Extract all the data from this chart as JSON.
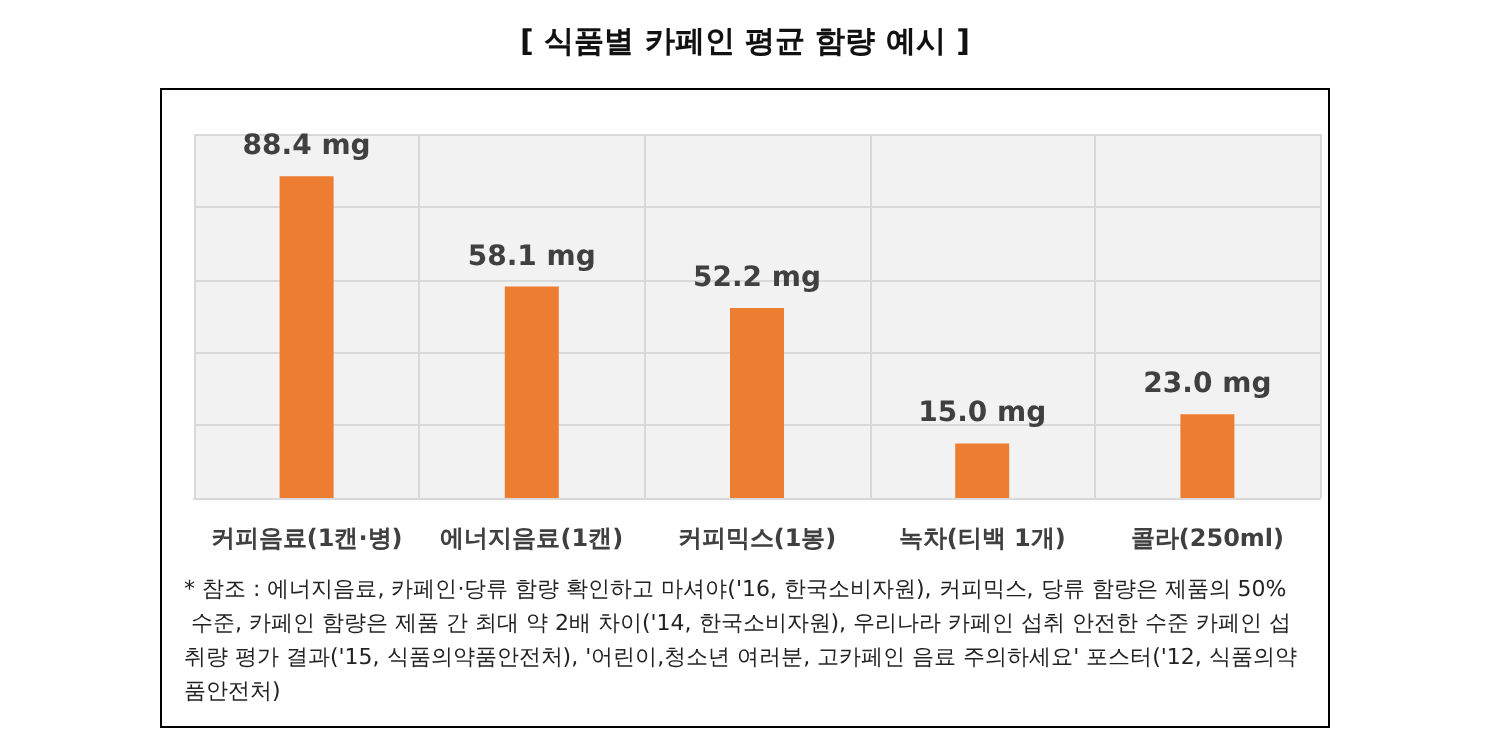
{
  "chart_data": {
    "type": "bar",
    "title": "[ 식품별 카페인 평균 함량 예시 ]",
    "categories": [
      "커피음료(1캔·병)",
      "에너지음료(1캔)",
      "커피믹스(1봉)",
      "녹차(티백 1개)",
      "콜라(250ml)"
    ],
    "values": [
      88.4,
      58.1,
      52.2,
      15.0,
      23.0
    ],
    "value_labels": [
      "88.4 mg",
      "58.1 mg",
      "52.2 mg",
      "15.0 mg",
      "23.0 mg"
    ],
    "color": "#ed7d31",
    "ylim": [
      0,
      100
    ],
    "yticks": [
      0,
      20,
      40,
      60,
      80,
      100
    ],
    "tick_labels": "x",
    "grid": true,
    "annotations": [
      "* 참조 : 에너지음료, 카페인·당류 함량 확인하고 마셔야('16, 한국소비자원), 커피믹스, 당류 함량은 제품의 50% 수준, 카페인 함량은 제품 간 최대 약 2배 차이('14, 한국소비자원), 우리나라 카페인 섭취 안전한 수준 카페인 섭취량 평가 결과('15, 식품의약품안전처), '어린이,청소년 여러분, 고카페인 음료 주의하세요' 포스터('12, 식품의약품안전처)"
    ]
  }
}
